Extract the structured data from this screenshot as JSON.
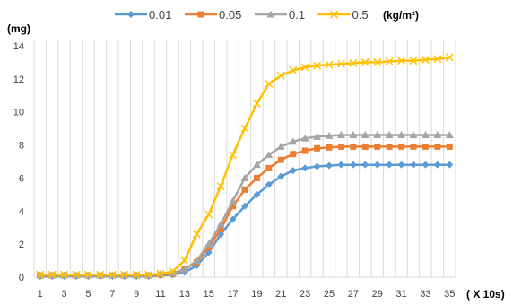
{
  "chart_data": {
    "type": "line",
    "ylabel": "(mg)",
    "xlabel": "( X 10s)",
    "legend_unit": "(kg/m²)",
    "legend_position": "top",
    "grid": {
      "vertical": true,
      "horizontal": false
    },
    "ylim": [
      0,
      14
    ],
    "yticks": [
      "0",
      "2",
      "4",
      "6",
      "8",
      "10",
      "12",
      "14"
    ],
    "x": [
      1,
      2,
      3,
      4,
      5,
      6,
      7,
      8,
      9,
      10,
      11,
      12,
      13,
      14,
      15,
      16,
      17,
      18,
      19,
      20,
      21,
      22,
      23,
      24,
      25,
      26,
      27,
      28,
      29,
      30,
      31,
      32,
      33,
      34,
      35
    ],
    "xticks": [
      "1",
      "3",
      "5",
      "7",
      "9",
      "11",
      "13",
      "15",
      "17",
      "19",
      "21",
      "23",
      "25",
      "27",
      "29",
      "31",
      "33",
      "35"
    ],
    "series": [
      {
        "name": "0.01",
        "color": "#5B9BD5",
        "marker": "diamond",
        "values": [
          0.05,
          0.05,
          0.05,
          0.05,
          0.05,
          0.05,
          0.05,
          0.05,
          0.05,
          0.05,
          0.1,
          0.15,
          0.3,
          0.7,
          1.5,
          2.6,
          3.5,
          4.3,
          5.0,
          5.6,
          6.1,
          6.45,
          6.6,
          6.7,
          6.75,
          6.8,
          6.8,
          6.8,
          6.8,
          6.8,
          6.8,
          6.8,
          6.8,
          6.8,
          6.8
        ]
      },
      {
        "name": "0.05",
        "color": "#ED7D31",
        "marker": "square",
        "values": [
          0.1,
          0.1,
          0.1,
          0.1,
          0.1,
          0.1,
          0.1,
          0.1,
          0.1,
          0.1,
          0.15,
          0.2,
          0.5,
          0.9,
          1.8,
          2.9,
          4.3,
          5.3,
          6.0,
          6.6,
          7.1,
          7.45,
          7.65,
          7.8,
          7.85,
          7.9,
          7.9,
          7.9,
          7.9,
          7.9,
          7.9,
          7.9,
          7.9,
          7.9,
          7.9
        ]
      },
      {
        "name": "0.1",
        "color": "#A5A5A5",
        "marker": "triangle",
        "values": [
          0.1,
          0.1,
          0.1,
          0.1,
          0.1,
          0.1,
          0.1,
          0.1,
          0.1,
          0.1,
          0.2,
          0.25,
          0.45,
          1.0,
          2.0,
          3.2,
          4.6,
          6.0,
          6.8,
          7.4,
          7.9,
          8.2,
          8.4,
          8.5,
          8.55,
          8.6,
          8.6,
          8.6,
          8.6,
          8.6,
          8.6,
          8.6,
          8.6,
          8.6,
          8.6
        ]
      },
      {
        "name": "0.5",
        "color": "#FFC000",
        "marker": "x",
        "values": [
          0.15,
          0.15,
          0.15,
          0.15,
          0.15,
          0.15,
          0.15,
          0.15,
          0.15,
          0.15,
          0.2,
          0.35,
          1.0,
          2.6,
          3.8,
          5.5,
          7.4,
          9.0,
          10.5,
          11.7,
          12.2,
          12.5,
          12.7,
          12.8,
          12.85,
          12.9,
          12.95,
          13.0,
          13.0,
          13.05,
          13.1,
          13.1,
          13.15,
          13.2,
          13.3
        ]
      }
    ]
  }
}
